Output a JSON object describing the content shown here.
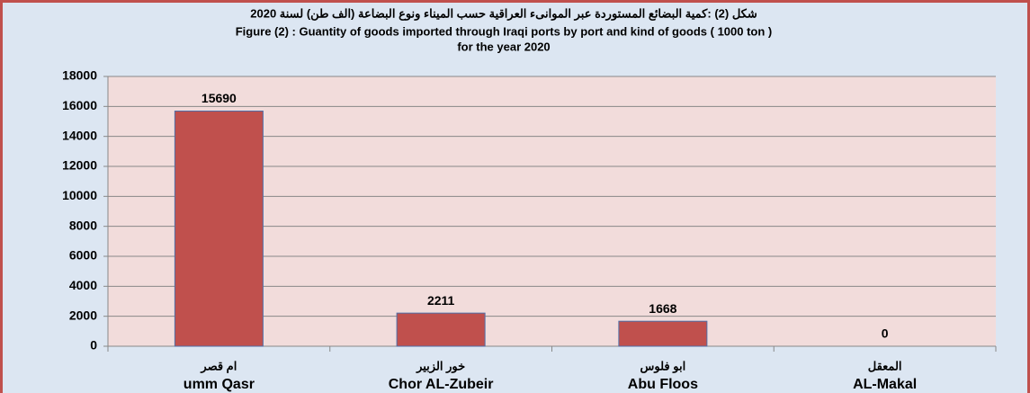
{
  "chart_data": {
    "type": "bar",
    "title": [
      "شكل (2) :كمية البضائع المستوردة عبر الموانىء العراقية حسب الميناء ونوع البضاعة (الف طن) لسنة 2020",
      "Figure (2) : Guantity of goods imported through Iraqi ports by port and kind of goods  ( 1000 ton  )",
      "for the year 2020"
    ],
    "categories_ar": [
      "ام قصر",
      "خور الزبير",
      "ابو فلوس",
      "المعقل"
    ],
    "categories": [
      "umm Qasr",
      "Chor AL-Zubeir",
      "Abu Floos",
      "AL-Makal"
    ],
    "values": [
      15690,
      2211,
      1668,
      0
    ],
    "color": "#c0504d",
    "ylim": [
      0,
      18000
    ],
    "yticks": [
      0,
      2000,
      4000,
      6000,
      8000,
      10000,
      12000,
      14000,
      16000,
      18000
    ],
    "grid": true
  }
}
